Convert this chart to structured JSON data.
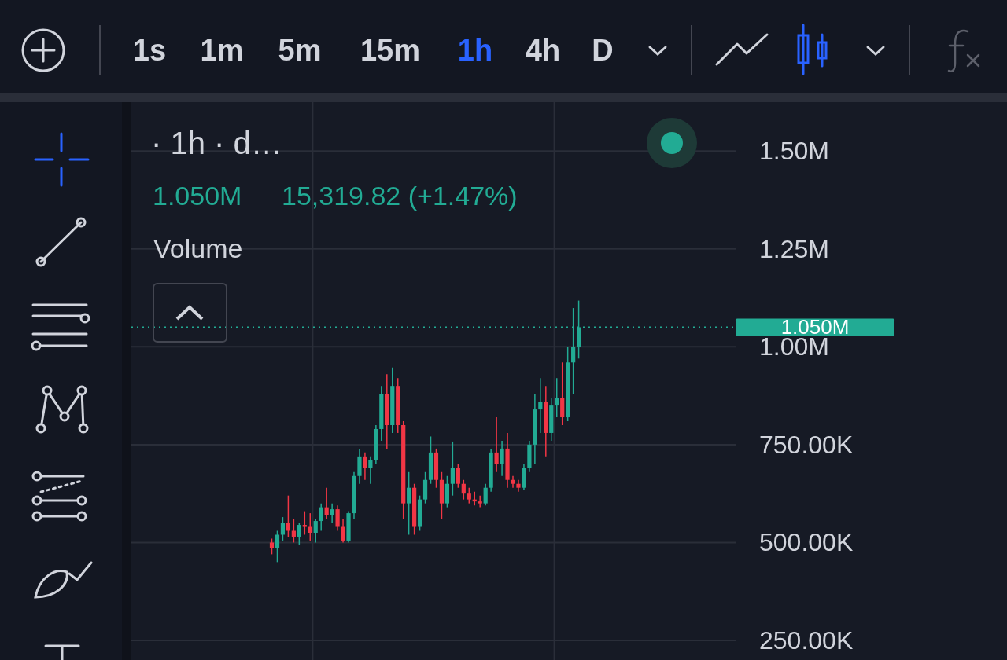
{
  "chart_data": {
    "type": "candlestick",
    "title": "· 1h · d…",
    "annotations": [
      "1s",
      "1m",
      "5m",
      "15m",
      "1h",
      "4h",
      "D",
      "1.050M",
      "15,319.82 (+1.47%)",
      "Volume"
    ],
    "categories": [
      null,
      null,
      null,
      null,
      null,
      null,
      null,
      null,
      null,
      null,
      null,
      null,
      null,
      null,
      null,
      null,
      null,
      null,
      null,
      null,
      null,
      null,
      null,
      null,
      null,
      null,
      null,
      null,
      null,
      null,
      null,
      null,
      null,
      null,
      null,
      null,
      null,
      null,
      null,
      null,
      null,
      null,
      null,
      null,
      null,
      null,
      null,
      null,
      null,
      null,
      null,
      null,
      null,
      null,
      null,
      null,
      null,
      null,
      null,
      null,
      null,
      null,
      null,
      null,
      null,
      null,
      null,
      null,
      null,
      null,
      null,
      null,
      null,
      null,
      null,
      null,
      null,
      null,
      null,
      null,
      null,
      null,
      null,
      null,
      null,
      null,
      null,
      null,
      null,
      null,
      null,
      null,
      null,
      null,
      null,
      null,
      null,
      null,
      null,
      null,
      null,
      null,
      null,
      null,
      null,
      null,
      null,
      null,
      null,
      null
    ],
    "ohlc": [
      null,
      null,
      null,
      null,
      null,
      null,
      null,
      null,
      null,
      null,
      null,
      null,
      null,
      null,
      null,
      null,
      null,
      null,
      null,
      null,
      null,
      null,
      null,
      null,
      null,
      [
        500000,
        510000,
        470000,
        485000
      ],
      [
        485000,
        530000,
        450000,
        520000
      ],
      [
        520000,
        565000,
        505000,
        550000
      ],
      [
        550000,
        620000,
        515000,
        530000
      ],
      [
        530000,
        560000,
        500000,
        515000
      ],
      [
        515000,
        550000,
        495000,
        545000
      ],
      [
        545000,
        580000,
        520000,
        540000
      ],
      [
        540000,
        575000,
        505000,
        525000
      ],
      [
        525000,
        560000,
        500000,
        555000
      ],
      [
        555000,
        600000,
        530000,
        590000
      ],
      [
        590000,
        640000,
        560000,
        570000
      ],
      [
        570000,
        600000,
        550000,
        585000
      ],
      [
        585000,
        595000,
        530000,
        540000
      ],
      [
        540000,
        560000,
        500000,
        505000
      ],
      [
        505000,
        580000,
        500000,
        575000
      ],
      [
        575000,
        680000,
        560000,
        670000
      ],
      [
        670000,
        740000,
        650000,
        720000
      ],
      [
        720000,
        730000,
        660000,
        690000
      ],
      [
        690000,
        720000,
        650000,
        710000
      ],
      [
        710000,
        800000,
        700000,
        790000
      ],
      [
        790000,
        900000,
        760000,
        880000
      ],
      [
        880000,
        930000,
        740000,
        800000
      ],
      [
        800000,
        947000,
        780000,
        900000
      ],
      [
        900000,
        920000,
        780000,
        800000
      ],
      [
        800000,
        810000,
        560000,
        600000
      ],
      [
        600000,
        680000,
        520000,
        640000
      ],
      [
        640000,
        650000,
        520000,
        540000
      ],
      [
        540000,
        620000,
        530000,
        610000
      ],
      [
        610000,
        680000,
        600000,
        660000
      ],
      [
        660000,
        771000,
        650000,
        730000
      ],
      [
        730000,
        740000,
        640000,
        660000
      ],
      [
        660000,
        680000,
        560000,
        600000
      ],
      [
        600000,
        670000,
        590000,
        650000
      ],
      [
        650000,
        758000,
        620000,
        690000
      ],
      [
        690000,
        700000,
        640000,
        650000
      ],
      [
        650000,
        660000,
        610000,
        625000
      ],
      [
        625000,
        640000,
        600000,
        610000
      ],
      [
        610000,
        630000,
        595000,
        605000
      ],
      [
        605000,
        620000,
        590000,
        600000
      ],
      [
        600000,
        650000,
        595000,
        640000
      ],
      [
        640000,
        740000,
        630000,
        730000
      ],
      [
        730000,
        820000,
        680000,
        700000
      ],
      [
        700000,
        760000,
        670000,
        740000
      ],
      [
        740000,
        780000,
        640000,
        660000
      ],
      [
        660000,
        670000,
        640000,
        650000
      ],
      [
        650000,
        660000,
        630000,
        640000
      ],
      [
        640000,
        700000,
        635000,
        690000
      ],
      [
        690000,
        760000,
        680000,
        750000
      ],
      [
        750000,
        880000,
        700000,
        840000
      ],
      [
        840000,
        920000,
        780000,
        860000
      ],
      [
        860000,
        900000,
        720000,
        780000
      ],
      [
        780000,
        870000,
        760000,
        850000
      ],
      [
        850000,
        920000,
        820000,
        870000
      ],
      [
        870000,
        960000,
        800000,
        820000
      ],
      [
        820000,
        1000000,
        810000,
        960000
      ],
      [
        960000,
        1099000,
        880000,
        1000000
      ],
      [
        1000000,
        1118000,
        970000,
        1050000
      ],
      null,
      null,
      null,
      null,
      null,
      null,
      null,
      null,
      null,
      null,
      null,
      null,
      null,
      null,
      null,
      null,
      null,
      null,
      null,
      null,
      null,
      null,
      null,
      null,
      null,
      null,
      null,
      null
    ],
    "ylim": [
      250000,
      1625000
    ],
    "yticks": [
      {
        "value": 250000,
        "label": "250.00K"
      },
      {
        "value": 500000,
        "label": "500.00K"
      },
      {
        "value": 750000,
        "label": "750.00K"
      },
      {
        "value": 1000000,
        "label": "1.00M"
      },
      {
        "value": 1250000,
        "label": "1.25M"
      },
      {
        "value": 1500000,
        "label": "1.50M"
      }
    ],
    "ref_lines": [
      {
        "axis": "y",
        "value": 1050000,
        "label": "1.050M",
        "color": "#22ab94",
        "line_style": "dotted"
      }
    ],
    "grid": true,
    "tick_labels": "y"
  }
}
